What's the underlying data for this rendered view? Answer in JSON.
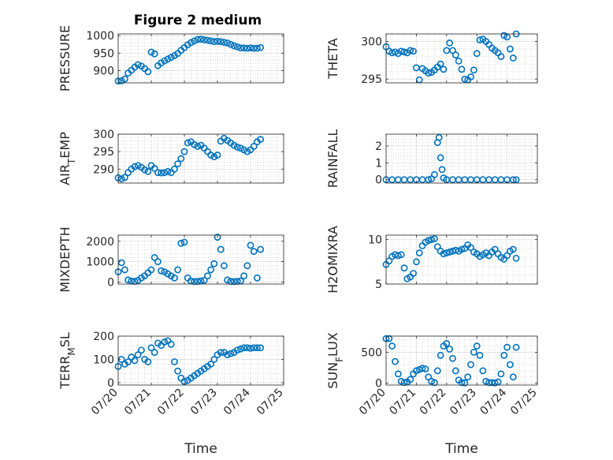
{
  "figure": {
    "title": "Figure 2 medium"
  },
  "colors": {
    "marker": "#0072BD",
    "axis": "#262626",
    "grid": "#bdbdbd"
  },
  "chart_data": [
    {
      "type": "scatter",
      "title": "Figure 2 medium",
      "ylabel": "PRESSURE",
      "xlabel": "",
      "xlim": [
        0,
        5
      ],
      "ylim": [
        865,
        1005
      ],
      "yticks": [
        900,
        950,
        1000
      ],
      "ytick_labels": [
        "900",
        "950",
        "1000"
      ],
      "xticks": [
        0,
        1,
        2,
        3,
        4,
        5
      ],
      "xtick_labels": [],
      "grid": true,
      "x": [
        0,
        0.1,
        0.2,
        0.3,
        0.4,
        0.5,
        0.6,
        0.7,
        0.8,
        0.9,
        1.0,
        1.1,
        1.2,
        1.3,
        1.4,
        1.5,
        1.6,
        1.7,
        1.8,
        1.9,
        2.0,
        2.1,
        2.2,
        2.3,
        2.4,
        2.5,
        2.6,
        2.7,
        2.8,
        2.9,
        3.0,
        3.1,
        3.2,
        3.3,
        3.4,
        3.5,
        3.6,
        3.7,
        3.8,
        3.9,
        4.0,
        4.1,
        4.2,
        4.3
      ],
      "y": [
        870,
        871,
        876,
        893,
        901,
        910,
        917,
        913,
        906,
        897,
        953,
        948,
        914,
        922,
        928,
        933,
        938,
        943,
        949,
        958,
        966,
        974,
        980,
        985,
        989,
        990,
        988,
        987,
        985,
        983,
        984,
        983,
        981,
        979,
        975,
        971,
        968,
        965,
        965,
        964,
        965,
        964,
        964,
        966
      ]
    },
    {
      "type": "scatter",
      "ylabel": "THETA",
      "xlabel": "",
      "xlim": [
        0,
        5
      ],
      "ylim": [
        294.5,
        301
      ],
      "yticks": [
        295,
        300
      ],
      "ytick_labels": [
        "295",
        "300"
      ],
      "xticks": [
        0,
        1,
        2,
        3,
        4,
        5
      ],
      "xtick_labels": [],
      "grid": true,
      "x": [
        0,
        0.1,
        0.2,
        0.3,
        0.4,
        0.5,
        0.6,
        0.7,
        0.8,
        0.9,
        1.0,
        1.1,
        1.2,
        1.3,
        1.4,
        1.5,
        1.6,
        1.7,
        1.8,
        1.9,
        2.0,
        2.1,
        2.2,
        2.3,
        2.4,
        2.5,
        2.6,
        2.7,
        2.8,
        2.9,
        3.0,
        3.1,
        3.2,
        3.3,
        3.4,
        3.5,
        3.6,
        3.7,
        3.8,
        3.9,
        4.0,
        4.1,
        4.2,
        4.3
      ],
      "y": [
        299.3,
        298.7,
        298.5,
        298.6,
        298.4,
        298.7,
        298.6,
        298.5,
        298.8,
        298.7,
        296.5,
        294.9,
        296.4,
        296.1,
        295.8,
        295.9,
        296.2,
        296.6,
        297.0,
        296.3,
        298.8,
        299.8,
        298.8,
        298.2,
        297.4,
        296.3,
        295.0,
        294.9,
        295.3,
        296.2,
        298.4,
        300.2,
        300.3,
        300.0,
        299.6,
        299.1,
        298.8,
        298.5,
        298.0,
        300.8,
        300.6,
        299.0,
        297.8,
        301.0
      ]
    },
    {
      "type": "scatter",
      "ylabel": "AIR_TEMP",
      "xlabel": "",
      "xlim": [
        0,
        5
      ],
      "ylim": [
        286,
        300
      ],
      "yticks": [
        290,
        295,
        300
      ],
      "ytick_labels": [
        "290",
        "295",
        "300"
      ],
      "xticks": [
        0,
        1,
        2,
        3,
        4,
        5
      ],
      "xtick_labels": [],
      "grid": true,
      "x": [
        0,
        0.1,
        0.2,
        0.3,
        0.4,
        0.5,
        0.6,
        0.7,
        0.8,
        0.9,
        1.0,
        1.1,
        1.2,
        1.3,
        1.4,
        1.5,
        1.6,
        1.7,
        1.8,
        1.9,
        2.0,
        2.1,
        2.2,
        2.3,
        2.4,
        2.5,
        2.6,
        2.7,
        2.8,
        2.9,
        3.0,
        3.1,
        3.2,
        3.3,
        3.4,
        3.5,
        3.6,
        3.7,
        3.8,
        3.9,
        4.0,
        4.1,
        4.2,
        4.3
      ],
      "y": [
        287.5,
        287.2,
        287.6,
        289.0,
        290.0,
        290.7,
        291.0,
        290.5,
        289.8,
        289.3,
        291.0,
        290.2,
        289.0,
        288.9,
        289.0,
        289.3,
        289.0,
        290.0,
        291.5,
        293.0,
        295.0,
        297.5,
        297.8,
        297.0,
        296.5,
        296.8,
        296.0,
        295.0,
        294.0,
        293.5,
        294.0,
        298.0,
        298.8,
        298.2,
        297.5,
        296.8,
        296.3,
        296.0,
        295.5,
        295.0,
        295.5,
        296.5,
        297.8,
        298.5
      ]
    },
    {
      "type": "scatter",
      "ylabel": "RAINFALL",
      "xlabel": "",
      "xlim": [
        0,
        5
      ],
      "ylim": [
        -0.2,
        2.7
      ],
      "yticks": [
        0,
        1,
        2
      ],
      "ytick_labels": [
        "0",
        "1",
        "2"
      ],
      "xticks": [
        0,
        1,
        2,
        3,
        4,
        5
      ],
      "xtick_labels": [],
      "grid": true,
      "x": [
        0,
        0.2,
        0.4,
        0.6,
        0.8,
        1.0,
        1.2,
        1.4,
        1.5,
        1.6,
        1.7,
        1.75,
        1.8,
        1.85,
        1.9,
        2.0,
        2.2,
        2.4,
        2.6,
        2.8,
        3.0,
        3.2,
        3.4,
        3.6,
        3.8,
        4.0,
        4.2,
        4.3
      ],
      "y": [
        0,
        0,
        0,
        0,
        0,
        0,
        0,
        0,
        0.05,
        0.3,
        2.2,
        2.5,
        1.3,
        0.6,
        0.1,
        0,
        0,
        0,
        0,
        0,
        0,
        0,
        0,
        0,
        0,
        0,
        0,
        0
      ]
    },
    {
      "type": "scatter",
      "ylabel": "MIXDEPTH",
      "xlabel": "",
      "xlim": [
        0,
        5
      ],
      "ylim": [
        -100,
        2300
      ],
      "yticks": [
        0,
        1000,
        2000
      ],
      "ytick_labels": [
        "0",
        "1000",
        "2000"
      ],
      "xticks": [
        0,
        1,
        2,
        3,
        4,
        5
      ],
      "xtick_labels": [],
      "grid": true,
      "x": [
        0,
        0.1,
        0.2,
        0.3,
        0.4,
        0.5,
        0.6,
        0.7,
        0.8,
        0.9,
        1.0,
        1.1,
        1.2,
        1.3,
        1.4,
        1.5,
        1.6,
        1.7,
        1.8,
        1.9,
        2.0,
        2.1,
        2.2,
        2.3,
        2.4,
        2.5,
        2.6,
        2.7,
        2.8,
        2.9,
        3.0,
        3.1,
        3.2,
        3.3,
        3.4,
        3.5,
        3.6,
        3.7,
        3.8,
        3.9,
        4.0,
        4.1,
        4.2,
        4.3
      ],
      "y": [
        500,
        950,
        600,
        100,
        50,
        30,
        80,
        200,
        300,
        450,
        600,
        1200,
        1000,
        550,
        500,
        400,
        300,
        200,
        600,
        1900,
        1950,
        200,
        50,
        20,
        30,
        50,
        80,
        300,
        600,
        900,
        2200,
        1600,
        800,
        100,
        30,
        20,
        30,
        50,
        300,
        800,
        1800,
        1500,
        200,
        1600
      ]
    },
    {
      "type": "scatter",
      "ylabel": "H2OMIXRA",
      "xlabel": "",
      "xlim": [
        0,
        5
      ],
      "ylim": [
        5,
        10.5
      ],
      "yticks": [
        5,
        10
      ],
      "ytick_labels": [
        "5",
        "10"
      ],
      "xticks": [
        0,
        1,
        2,
        3,
        4,
        5
      ],
      "xtick_labels": [],
      "grid": true,
      "x": [
        0,
        0.1,
        0.2,
        0.3,
        0.4,
        0.5,
        0.6,
        0.7,
        0.8,
        0.9,
        1.0,
        1.1,
        1.2,
        1.3,
        1.4,
        1.5,
        1.6,
        1.7,
        1.8,
        1.9,
        2.0,
        2.1,
        2.2,
        2.3,
        2.4,
        2.5,
        2.6,
        2.7,
        2.8,
        2.9,
        3.0,
        3.1,
        3.2,
        3.3,
        3.4,
        3.5,
        3.6,
        3.7,
        3.8,
        3.9,
        4.0,
        4.1,
        4.2,
        4.3
      ],
      "y": [
        7.2,
        7.6,
        8.1,
        8.3,
        8.2,
        8.3,
        6.8,
        5.6,
        5.8,
        6.2,
        7.5,
        8.5,
        9.3,
        9.7,
        9.9,
        10.0,
        10.1,
        9.2,
        8.7,
        8.4,
        8.5,
        8.6,
        8.7,
        8.8,
        8.7,
        8.9,
        9.0,
        9.4,
        9.1,
        8.6,
        8.4,
        8.1,
        8.3,
        8.5,
        8.2,
        8.6,
        8.9,
        8.4,
        8.0,
        7.8,
        8.2,
        8.7,
        8.9,
        7.9
      ]
    },
    {
      "type": "scatter",
      "ylabel": "TERR_MSL",
      "xlabel": "Time",
      "xlim": [
        0,
        5
      ],
      "ylim": [
        -10,
        200
      ],
      "yticks": [
        0,
        100,
        200
      ],
      "ytick_labels": [
        "0",
        "100",
        "200"
      ],
      "xticks": [
        0,
        1,
        2,
        3,
        4,
        5
      ],
      "xtick_labels": [
        "07/20",
        "07/21",
        "07/22",
        "07/23",
        "07/24",
        "07/25"
      ],
      "grid": true,
      "x": [
        0,
        0.1,
        0.2,
        0.3,
        0.4,
        0.5,
        0.6,
        0.7,
        0.8,
        0.9,
        1.0,
        1.1,
        1.2,
        1.3,
        1.4,
        1.5,
        1.6,
        1.7,
        1.8,
        1.9,
        2.0,
        2.1,
        2.2,
        2.3,
        2.4,
        2.5,
        2.6,
        2.7,
        2.8,
        2.9,
        3.0,
        3.1,
        3.2,
        3.3,
        3.4,
        3.5,
        3.6,
        3.7,
        3.8,
        3.9,
        4.0,
        4.1,
        4.2,
        4.3
      ],
      "y": [
        70,
        100,
        80,
        90,
        110,
        95,
        120,
        140,
        100,
        90,
        150,
        130,
        170,
        160,
        175,
        180,
        165,
        90,
        50,
        20,
        5,
        10,
        20,
        30,
        40,
        50,
        60,
        70,
        80,
        100,
        120,
        130,
        130,
        120,
        125,
        130,
        140,
        145,
        150,
        150,
        148,
        150,
        150,
        150
      ]
    },
    {
      "type": "scatter",
      "ylabel": "SUN_FLUX",
      "xlabel": "Time",
      "xlim": [
        0,
        5
      ],
      "ylim": [
        -30,
        760
      ],
      "yticks": [
        0,
        500
      ],
      "ytick_labels": [
        "0",
        "500"
      ],
      "xticks": [
        0,
        1,
        2,
        3,
        4,
        5
      ],
      "xtick_labels": [
        "07/20",
        "07/21",
        "07/22",
        "07/23",
        "07/24",
        "07/25"
      ],
      "grid": true,
      "x": [
        0,
        0.1,
        0.2,
        0.3,
        0.4,
        0.5,
        0.6,
        0.7,
        0.8,
        0.9,
        1.0,
        1.1,
        1.2,
        1.3,
        1.4,
        1.5,
        1.6,
        1.7,
        1.8,
        1.9,
        2.0,
        2.1,
        2.2,
        2.3,
        2.4,
        2.5,
        2.6,
        2.7,
        2.8,
        2.9,
        3.0,
        3.1,
        3.2,
        3.3,
        3.4,
        3.5,
        3.6,
        3.7,
        3.8,
        3.9,
        4.0,
        4.1,
        4.2,
        4.3
      ],
      "y": [
        720,
        720,
        600,
        350,
        150,
        30,
        10,
        20,
        60,
        150,
        200,
        220,
        240,
        230,
        100,
        30,
        10,
        200,
        450,
        600,
        640,
        550,
        400,
        200,
        50,
        10,
        5,
        100,
        300,
        500,
        600,
        450,
        200,
        30,
        10,
        10,
        5,
        20,
        150,
        450,
        580,
        300,
        100,
        580
      ]
    }
  ]
}
